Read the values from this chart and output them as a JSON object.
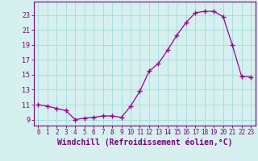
{
  "x": [
    0,
    1,
    2,
    3,
    4,
    5,
    6,
    7,
    8,
    9,
    10,
    11,
    12,
    13,
    14,
    15,
    16,
    17,
    18,
    19,
    20,
    21,
    22,
    23
  ],
  "y": [
    11.0,
    10.8,
    10.5,
    10.2,
    9.0,
    9.2,
    9.3,
    9.5,
    9.5,
    9.3,
    10.8,
    12.8,
    15.5,
    16.5,
    18.3,
    20.3,
    22.0,
    23.3,
    23.5,
    23.5,
    22.8,
    19.0,
    14.8,
    14.7
  ],
  "line_color": "#990099",
  "marker": "+",
  "marker_size": 4,
  "bg_color": "#d6f0f0",
  "grid_color": "#aadddd",
  "xlabel": "Windchill (Refroidissement éolien,°C)",
  "xlabel_fontsize": 7.0,
  "xtick_labels": [
    "0",
    "1",
    "2",
    "3",
    "4",
    "5",
    "6",
    "7",
    "8",
    "9",
    "10",
    "11",
    "12",
    "13",
    "14",
    "15",
    "16",
    "17",
    "18",
    "19",
    "20",
    "21",
    "22",
    "23"
  ],
  "ytick_values": [
    9,
    11,
    13,
    15,
    17,
    19,
    21,
    23
  ],
  "ylim": [
    8.2,
    24.8
  ],
  "xlim": [
    -0.5,
    23.5
  ],
  "tick_color": "#770077",
  "spine_color": "#770077",
  "tick_fontsize": 5.5,
  "ytick_fontsize": 6.0
}
